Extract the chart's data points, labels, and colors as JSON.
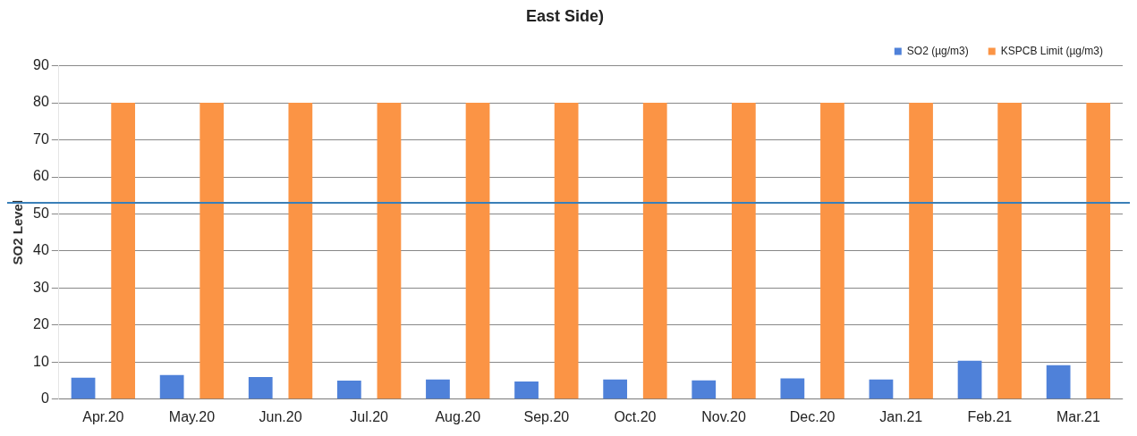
{
  "chart_data": {
    "type": "bar",
    "title": "East Side)",
    "ylabel": "SO2 Level",
    "categories": [
      "Apr.20",
      "May.20",
      "Jun.20",
      "Jul.20",
      "Aug.20",
      "Sep.20",
      "Oct.20",
      "Nov.20",
      "Dec.20",
      "Jan.21",
      "Feb.21",
      "Mar.21"
    ],
    "series": [
      {
        "name": "SO2 (µg/m3)",
        "color": "#4f81d9",
        "values": [
          5.8,
          6.5,
          6.0,
          5.0,
          5.3,
          4.8,
          5.3,
          5.1,
          5.6,
          5.3,
          10.4,
          9.2
        ]
      },
      {
        "name": "KSPCB Limit (µg/m3)",
        "color": "#fb9445",
        "values": [
          80,
          80,
          80,
          80,
          80,
          80,
          80,
          80,
          80,
          80,
          80,
          80
        ]
      }
    ],
    "ylim": [
      0,
      90
    ],
    "yticks": [
      0,
      10,
      20,
      30,
      40,
      50,
      60,
      70,
      80,
      90
    ],
    "grid": "y",
    "legend": "top right",
    "ref_lines": [
      {
        "axis": "y",
        "value": 53,
        "color": "#3a7fb8"
      }
    ]
  }
}
